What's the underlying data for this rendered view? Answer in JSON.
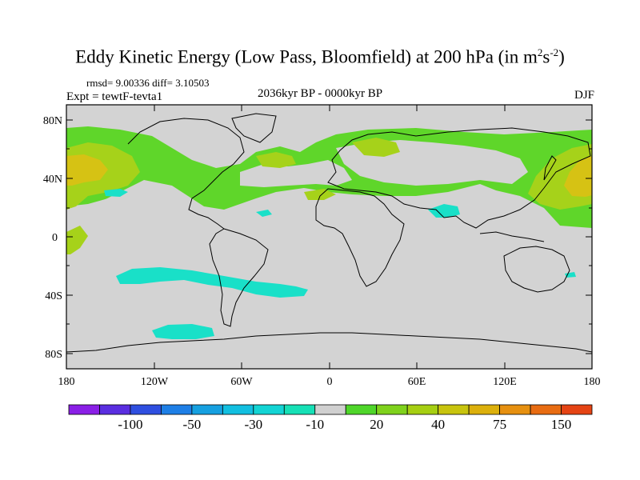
{
  "title": "Eddy Kinetic Energy (Low Pass, Bloomfield) at 200 hPa (in m",
  "title_sup1": "2",
  "title_mid": "s",
  "title_sup2": "-2",
  "title_end": ")",
  "stats": "rmsd= 9.00336 diff= 3.10503",
  "expt": "Expt = tewtF-tevta1",
  "period": "2036kyr BP - 0000kyr BP",
  "season": "DJF",
  "lat_labels": [
    "80N",
    "40N",
    "0",
    "40S",
    "80S"
  ],
  "lon_labels": [
    "180",
    "120W",
    "60W",
    "0",
    "60E",
    "120E",
    "180"
  ],
  "colorbar": {
    "colors": [
      "#8a1fe6",
      "#5a2ee0",
      "#2f4fe0",
      "#1e7fe6",
      "#16a0e0",
      "#12bfe0",
      "#13d4d4",
      "#16e0b6",
      "#d0d0d0",
      "#4fd62a",
      "#7fd21c",
      "#a6cf12",
      "#c8c40e",
      "#dcb00c",
      "#e69010",
      "#e86c12",
      "#e54414"
    ],
    "labels": [
      "-100",
      "-50",
      "-30",
      "-10",
      "20",
      "40",
      "75",
      "150"
    ]
  },
  "colors": {
    "land_default": "#d3d3d3",
    "positive_weak": "#5fd62a",
    "positive_mid": "#a6d21a",
    "positive_strong": "#d6c214",
    "negative": "#19e0c8"
  }
}
